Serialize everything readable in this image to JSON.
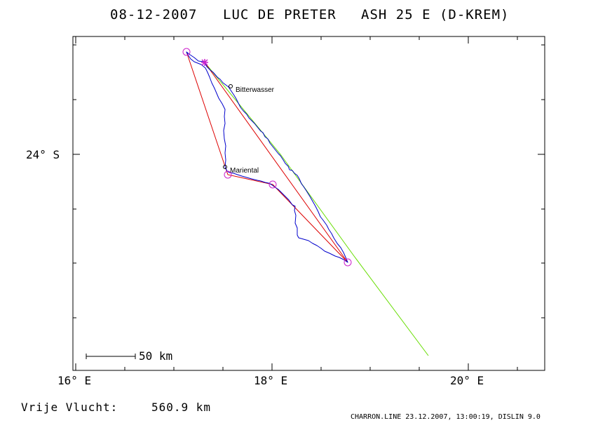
{
  "flight": {
    "date": "08-12-2007",
    "pilot": "LUC DE PRETER",
    "aircraft": "ASH 25 E (D-KREM)"
  },
  "axes": {
    "x_labels": [
      "16° E",
      "18° E",
      "20° E"
    ],
    "y_labels": [
      "24° S"
    ]
  },
  "scale_bar": {
    "label": "50 km"
  },
  "places": [
    {
      "name": "Bitterwasser"
    },
    {
      "name": "Mariental"
    }
  ],
  "distance": {
    "label": "Vrije Vlucht:",
    "value": "560.9 km"
  },
  "footer": {
    "text": "CHARRON.LINE 23.12.2007, 13:00:19, DISLIN 9.0"
  },
  "colors": {
    "frame": "#000000",
    "track": "#0000cc",
    "task": "#dd0000",
    "line": "#66dd00",
    "turnpoint": "#cc22cc"
  }
}
